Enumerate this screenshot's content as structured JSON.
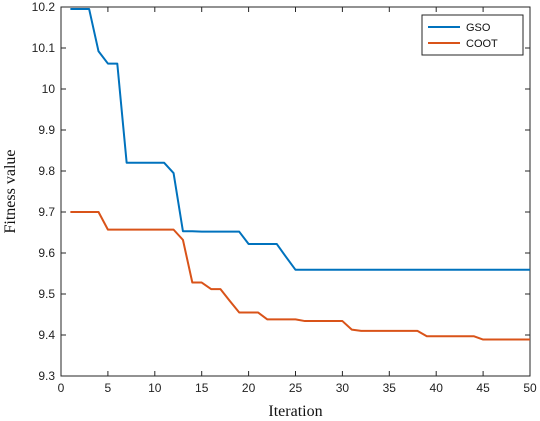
{
  "chart_data": {
    "type": "line",
    "title": "",
    "xlabel": "Iteration",
    "ylabel": "Fitness value",
    "xlim": [
      0,
      50
    ],
    "ylim": [
      9.3,
      10.2
    ],
    "xticks": [
      0,
      5,
      10,
      15,
      20,
      25,
      30,
      35,
      40,
      45,
      50
    ],
    "yticks": [
      9.3,
      9.4,
      9.5,
      9.6,
      9.7,
      9.8,
      9.9,
      10,
      10.1,
      10.2
    ],
    "ytick_labels": [
      "9.3",
      "9.4",
      "9.5",
      "9.6",
      "9.7",
      "9.8",
      "9.9",
      "10",
      "10.1",
      "10.2"
    ],
    "grid": false,
    "legend_position": "top-right",
    "x": [
      1,
      2,
      3,
      4,
      5,
      6,
      7,
      8,
      9,
      10,
      11,
      12,
      13,
      14,
      15,
      16,
      17,
      18,
      19,
      20,
      21,
      22,
      23,
      24,
      25,
      26,
      27,
      28,
      29,
      30,
      31,
      32,
      33,
      34,
      35,
      36,
      37,
      38,
      39,
      40,
      41,
      42,
      43,
      44,
      45,
      46,
      47,
      48,
      49,
      50
    ],
    "series": [
      {
        "name": "GSO",
        "color": "#0072BD",
        "values": [
          10.195,
          10.195,
          10.195,
          10.092,
          10.062,
          10.062,
          9.82,
          9.82,
          9.82,
          9.82,
          9.82,
          9.795,
          9.653,
          9.653,
          9.652,
          9.652,
          9.652,
          9.652,
          9.652,
          9.622,
          9.622,
          9.622,
          9.622,
          9.59,
          9.559,
          9.559,
          9.559,
          9.559,
          9.559,
          9.559,
          9.559,
          9.559,
          9.559,
          9.559,
          9.559,
          9.559,
          9.559,
          9.559,
          9.559,
          9.559,
          9.559,
          9.559,
          9.559,
          9.559,
          9.559,
          9.559,
          9.559,
          9.559,
          9.559,
          9.559
        ]
      },
      {
        "name": "COOT",
        "color": "#D95319",
        "values": [
          9.7,
          9.7,
          9.7,
          9.7,
          9.657,
          9.657,
          9.657,
          9.657,
          9.657,
          9.657,
          9.657,
          9.657,
          9.632,
          9.528,
          9.528,
          9.512,
          9.512,
          9.483,
          9.455,
          9.455,
          9.455,
          9.438,
          9.438,
          9.438,
          9.438,
          9.434,
          9.434,
          9.434,
          9.434,
          9.434,
          9.413,
          9.41,
          9.41,
          9.41,
          9.41,
          9.41,
          9.41,
          9.41,
          9.397,
          9.397,
          9.397,
          9.397,
          9.397,
          9.397,
          9.389,
          9.389,
          9.389,
          9.389,
          9.389,
          9.389
        ]
      }
    ]
  }
}
